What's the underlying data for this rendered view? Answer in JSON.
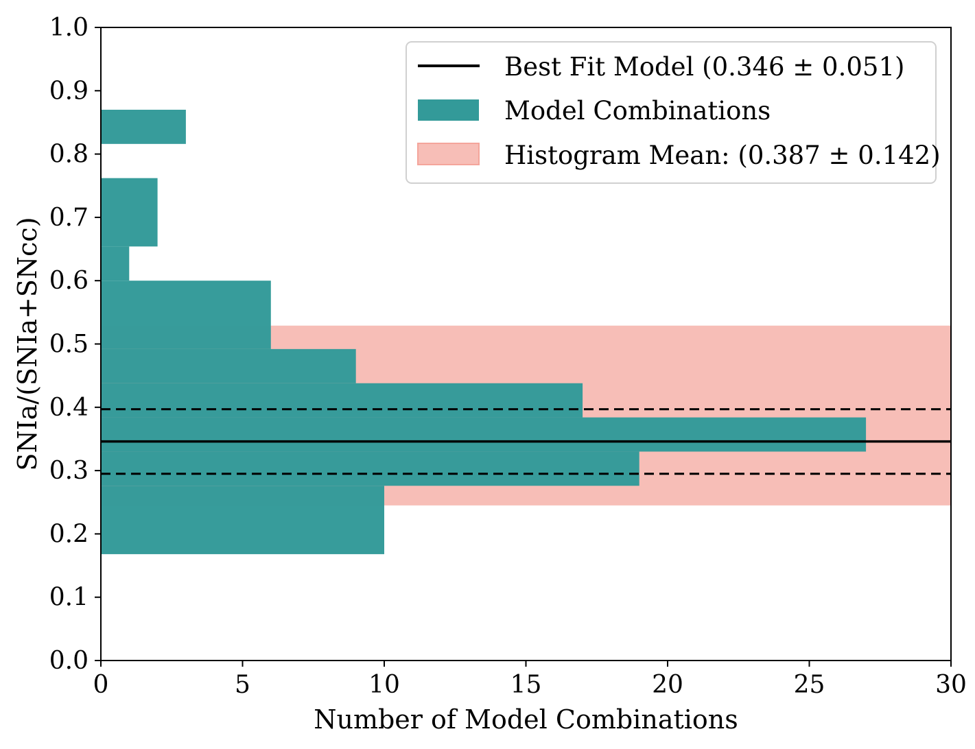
{
  "chart_data": {
    "type": "bar",
    "orientation": "horizontal",
    "xlabel": "Number of Model Combinations",
    "ylabel": "SNIa/(SNIa+SNcc)",
    "xlim": [
      0,
      30
    ],
    "ylim": [
      0.0,
      1.0
    ],
    "xticks": [
      "0",
      "5",
      "10",
      "15",
      "20",
      "25",
      "30"
    ],
    "yticks": [
      "0.0",
      "0.1",
      "0.2",
      "0.3",
      "0.4",
      "0.5",
      "0.6",
      "0.7",
      "0.8",
      "0.9",
      "1.0"
    ],
    "histogram": {
      "name": "Model Combinations",
      "color": "#339a99",
      "bins": [
        {
          "y0": 0.168,
          "y1": 0.276,
          "count": 10
        },
        {
          "y0": 0.276,
          "y1": 0.33,
          "count": 19
        },
        {
          "y0": 0.33,
          "y1": 0.384,
          "count": 27
        },
        {
          "y0": 0.384,
          "y1": 0.438,
          "count": 17
        },
        {
          "y0": 0.438,
          "y1": 0.492,
          "count": 9
        },
        {
          "y0": 0.492,
          "y1": 0.6,
          "count": 6
        },
        {
          "y0": 0.6,
          "y1": 0.654,
          "count": 1
        },
        {
          "y0": 0.654,
          "y1": 0.762,
          "count": 2
        },
        {
          "y0": 0.816,
          "y1": 0.87,
          "count": 3
        }
      ]
    },
    "best_fit": {
      "name": "Best Fit Model (0.346 ± 0.051)",
      "value": 0.346,
      "uncertainty": 0.051,
      "color": "#000000"
    },
    "histogram_mean": {
      "name": "Histogram Mean: (0.387 ± 0.142)",
      "value": 0.387,
      "uncertainty": 0.142,
      "color": "#f4a59b"
    },
    "legend": {
      "location": "top-right",
      "entries": [
        "Best Fit Model (0.346 ± 0.051)",
        "Model Combinations",
        "Histogram Mean: (0.387 ± 0.142)"
      ]
    }
  }
}
